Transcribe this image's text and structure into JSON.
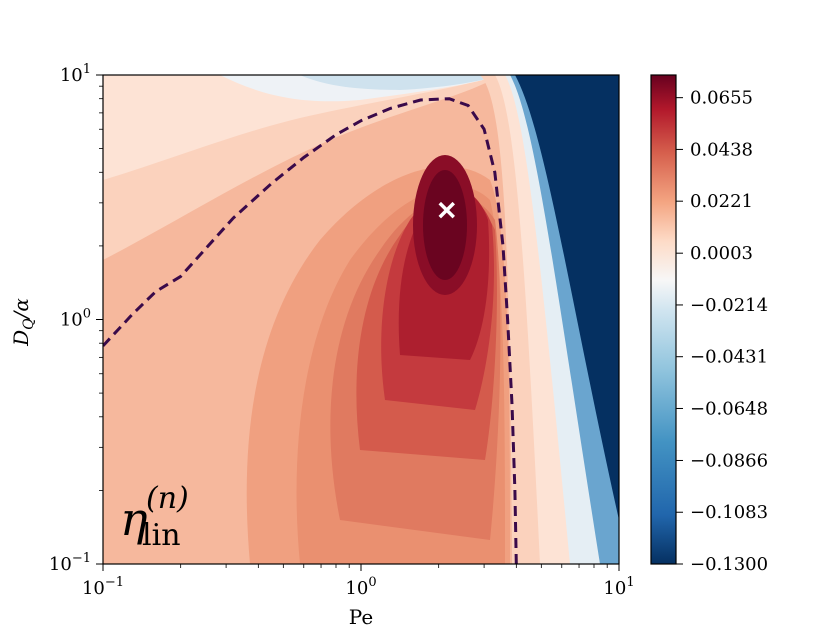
{
  "chart_data": {
    "type": "heatmap",
    "subtype": "filled-contour",
    "title": "",
    "xlabel": "Pe",
    "ylabel": "D_Q/α",
    "xscale": "log",
    "yscale": "log",
    "xlim": [
      0.1,
      10
    ],
    "ylim": [
      0.1,
      10
    ],
    "x_ticks": [
      {
        "value": 0.1,
        "label": "10^{-1}"
      },
      {
        "value": 1,
        "label": "10^{0}"
      },
      {
        "value": 10,
        "label": "10^{1}"
      }
    ],
    "y_ticks": [
      {
        "value": 0.1,
        "label": "10^{-1}"
      },
      {
        "value": 1,
        "label": "10^{0}"
      },
      {
        "value": 10,
        "label": "10^{1}"
      }
    ],
    "panel_label": {
      "symbol": "η",
      "superscript": "(n)",
      "subscript": "lin"
    },
    "colormap": "RdBu_r",
    "zlim": [
      -0.13,
      0.075
    ],
    "colorbar_ticks": [
      "0.0655",
      "0.0438",
      "0.0221",
      "0.0003",
      "−0.0214",
      "−0.0431",
      "−0.0648",
      "−0.0866",
      "−0.1083",
      "−0.1300"
    ],
    "colorbar_tick_values": [
      0.0655,
      0.0438,
      0.0221,
      0.0003,
      -0.0214,
      -0.0431,
      -0.0648,
      -0.0866,
      -0.1083,
      -0.13
    ],
    "maximum_marker": {
      "Pe": 2.15,
      "D_Q_over_alpha": 2.8,
      "symbol": "×"
    },
    "zero_contour": {
      "style": "dashed",
      "color": "#3a0a4a",
      "points": [
        [
          0.1,
          0.78
        ],
        [
          0.13,
          1.05
        ],
        [
          0.16,
          1.3
        ],
        [
          0.2,
          1.5
        ],
        [
          0.25,
          1.95
        ],
        [
          0.32,
          2.6
        ],
        [
          0.45,
          3.6
        ],
        [
          0.6,
          4.6
        ],
        [
          0.8,
          5.7
        ],
        [
          1.0,
          6.5
        ],
        [
          1.3,
          7.3
        ],
        [
          1.7,
          7.9
        ],
        [
          2.2,
          8.0
        ],
        [
          2.6,
          7.5
        ],
        [
          3.0,
          6.0
        ],
        [
          3.3,
          4.0
        ],
        [
          3.55,
          2.0
        ],
        [
          3.7,
          1.0
        ],
        [
          3.85,
          0.45
        ],
        [
          3.95,
          0.2
        ],
        [
          4.0,
          0.1
        ]
      ]
    }
  }
}
